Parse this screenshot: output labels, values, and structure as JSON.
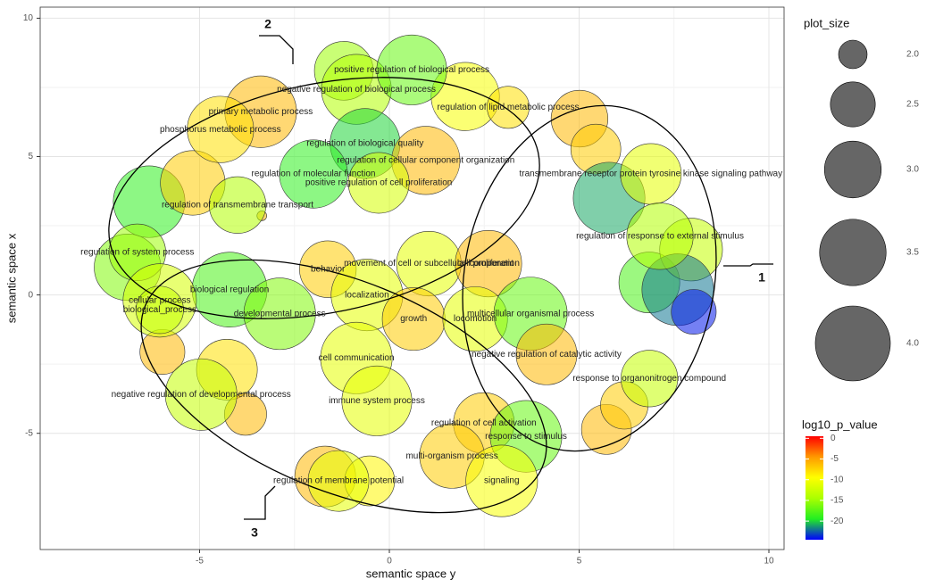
{
  "chart_data": {
    "type": "bubble",
    "xlabel": "semantic space y",
    "ylabel": "semantic space x",
    "xlim": [
      -9.2,
      10.4
    ],
    "ylim": [
      -9.2,
      10.4
    ],
    "xticks": [
      -5,
      0,
      5,
      10
    ],
    "yticks": [
      -5,
      0,
      5,
      10
    ],
    "grid": true,
    "size_title": "plot_size",
    "size_ticks": [
      {
        "value": 2,
        "label": "2.0"
      },
      {
        "value": 2.5,
        "label": "2.5"
      },
      {
        "value": 3,
        "label": "3.0"
      },
      {
        "value": 3.5,
        "label": "3.5"
      },
      {
        "value": 4,
        "label": "4.0"
      }
    ],
    "color_title": "log10_p_value",
    "color_lim": [
      -24.5,
      0.5
    ],
    "color_ticks": [
      0,
      -5,
      -10,
      -15,
      -20
    ],
    "colorscale": [
      "#0000ff",
      "#22ee22",
      "#aaff00",
      "#ffff00",
      "#ff9900",
      "#ff0000"
    ],
    "annotations": [
      "1",
      "2",
      "3"
    ],
    "bubbles": [
      {
        "x": -6.33,
        "y": 3.37,
        "size": 3.8,
        "log10_p": -19
      },
      {
        "x": -5.18,
        "y": 4.05,
        "size": 3.4,
        "log10_p": -7
      },
      {
        "x": -6.9,
        "y": 1.0,
        "size": 3.5,
        "log10_p": -16
      },
      {
        "x": -5.98,
        "y": -2.06,
        "size": 2.5,
        "log10_p": -6
      },
      {
        "x": -4.28,
        "y": -2.7,
        "size": 3.2,
        "log10_p": -8
      },
      {
        "x": -3.79,
        "y": -4.31,
        "size": 2.4,
        "log10_p": -6
      },
      {
        "x": 2.0,
        "y": 7.17,
        "size": 3.6,
        "log10_p": -10
      },
      {
        "x": -1.2,
        "y": 8.1,
        "size": 3.1,
        "log10_p": -15
      },
      {
        "x": 5.01,
        "y": 6.37,
        "size": 3.0,
        "log10_p": -6
      },
      {
        "x": 5.44,
        "y": 5.27,
        "size": 2.7,
        "log10_p": -7
      },
      {
        "x": 5.79,
        "y": 3.5,
        "size": 3.8,
        "log10_p": -21
      },
      {
        "x": 6.85,
        "y": 0.45,
        "size": 3.2,
        "log10_p": -18
      },
      {
        "x": 7.95,
        "y": 1.64,
        "size": 3.3,
        "log10_p": -13
      },
      {
        "x": 7.6,
        "y": 0.19,
        "size": 3.8,
        "log10_p": -22
      },
      {
        "x": 8.02,
        "y": -0.61,
        "size": 2.5,
        "log10_p": -24
      },
      {
        "x": 5.72,
        "y": -4.86,
        "size": 2.7,
        "log10_p": -6
      },
      {
        "x": 6.19,
        "y": -3.99,
        "size": 2.6,
        "log10_p": -7
      },
      {
        "x": -1.69,
        "y": -6.56,
        "size": 3.2,
        "log10_p": -6
      },
      {
        "x": -0.52,
        "y": -6.72,
        "size": 2.7,
        "log10_p": -9
      },
      {
        "x": -3.36,
        "y": 2.86,
        "size": 1.7,
        "log10_p": -6
      },
      {
        "label": "negative regulation of biological process",
        "x": -0.87,
        "y": 7.43,
        "size": 3.7,
        "log10_p": -14
      },
      {
        "label": "positive regulation of biological process",
        "x": 0.59,
        "y": 8.13,
        "size": 3.7,
        "log10_p": -17
      },
      {
        "label": "regulation of lipid metabolic process",
        "x": 3.13,
        "y": 6.78,
        "size": 2.4,
        "log10_p": -8
      },
      {
        "label": "primary metabolic process",
        "x": -3.39,
        "y": 6.62,
        "size": 3.8,
        "log10_p": -6
      },
      {
        "label": "phosphorus metabolic process",
        "x": -4.45,
        "y": 5.98,
        "size": 3.5,
        "log10_p": -8
      },
      {
        "label": "regulation of biological quality",
        "x": -0.64,
        "y": 5.47,
        "size": 3.7,
        "log10_p": -20
      },
      {
        "label": "regulation of cellular component organization",
        "x": 0.96,
        "y": 4.86,
        "size": 3.6,
        "log10_p": -6
      },
      {
        "label": "regulation of molecular function",
        "x": -2.0,
        "y": 4.37,
        "size": 3.6,
        "log10_p": -19
      },
      {
        "label": "positive regulation of cell proliferation",
        "x": -0.28,
        "y": 4.05,
        "size": 3.2,
        "log10_p": -12
      },
      {
        "label": "regulation of transmembrane transport",
        "x": -4.0,
        "y": 3.25,
        "size": 3.0,
        "log10_p": -14
      },
      {
        "label": "regulation of system process",
        "x": -6.64,
        "y": 1.54,
        "size": 3.0,
        "log10_p": -15
      },
      {
        "label": "behavior",
        "x": -1.62,
        "y": 0.93,
        "size": 3.0,
        "log10_p": -7
      },
      {
        "label": "movement of cell or subcellular component",
        "x": 1.04,
        "y": 1.13,
        "size": 3.4,
        "log10_p": -11
      },
      {
        "label": "cell proliferation",
        "x": 2.61,
        "y": 1.13,
        "size": 3.5,
        "log10_p": -6
      },
      {
        "label": "biological regulation",
        "x": -4.21,
        "y": 0.19,
        "size": 4.0,
        "log10_p": -18
      },
      {
        "label": "cellular process",
        "x": -6.05,
        "y": -0.2,
        "size": 3.9,
        "log10_p": -12
      },
      {
        "label": "biological_process",
        "x": -6.05,
        "y": -0.54,
        "size": 2.6,
        "log10_p": -13
      },
      {
        "label": "localization",
        "x": -0.59,
        "y": 0.0,
        "size": 3.8,
        "log10_p": -11
      },
      {
        "label": "developmental process",
        "x": -2.89,
        "y": -0.68,
        "size": 3.8,
        "log10_p": -16
      },
      {
        "label": "growth",
        "x": 0.64,
        "y": -0.87,
        "size": 3.3,
        "log10_p": -7
      },
      {
        "label": "locomotion",
        "x": 2.26,
        "y": -0.87,
        "size": 3.4,
        "log10_p": -11
      },
      {
        "label": "multicellular organismal process",
        "x": 3.72,
        "y": -0.68,
        "size": 3.9,
        "log10_p": -17
      },
      {
        "label": "cell communication",
        "x": -0.87,
        "y": -2.28,
        "size": 3.8,
        "log10_p": -11
      },
      {
        "label": "negative regulation of catalytic activity",
        "x": 4.14,
        "y": -2.15,
        "size": 3.2,
        "log10_p": -6
      },
      {
        "label": "response to organonitrogen compound",
        "x": 6.85,
        "y": -3.02,
        "size": 3.0,
        "log10_p": -13
      },
      {
        "label": "negative regulation of developmental process",
        "x": -4.96,
        "y": -3.6,
        "size": 3.8,
        "log10_p": -13
      },
      {
        "label": "immune system process",
        "x": -0.33,
        "y": -3.83,
        "size": 3.7,
        "log10_p": -11
      },
      {
        "label": "regulation of cell activation",
        "x": 2.49,
        "y": -4.63,
        "size": 3.2,
        "log10_p": -7
      },
      {
        "label": "response to stimulus",
        "x": 3.6,
        "y": -5.11,
        "size": 3.8,
        "log10_p": -17
      },
      {
        "label": "multi-organism process",
        "x": 1.65,
        "y": -5.82,
        "size": 3.4,
        "log10_p": -7
      },
      {
        "label": "signaling",
        "x": 2.96,
        "y": -6.72,
        "size": 3.8,
        "log10_p": -10
      },
      {
        "label": "regulation of membrane potential",
        "x": -1.34,
        "y": -6.72,
        "size": 3.2,
        "log10_p": -11
      },
      {
        "label": "transmembrane receptor protein tyrosine kinase signaling pathway",
        "x": 6.89,
        "y": 4.37,
        "size": 3.2,
        "log10_p": -11
      },
      {
        "label": "regulation of response to external stimulus",
        "x": 7.13,
        "y": 2.12,
        "size": 3.5,
        "log10_p": -14
      }
    ]
  }
}
